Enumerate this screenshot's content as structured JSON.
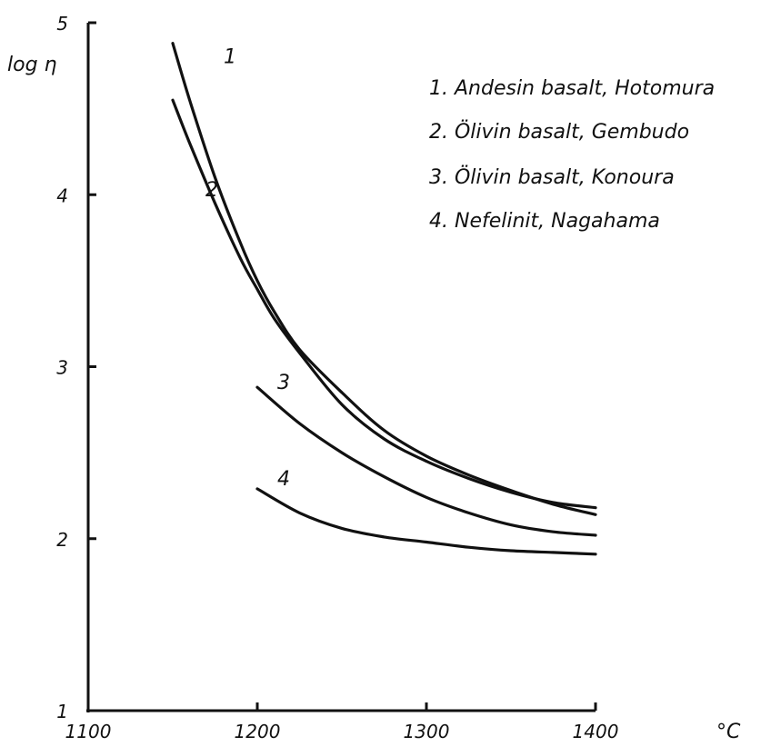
{
  "chart_data": {
    "type": "line",
    "title": "",
    "xlabel": "",
    "ylabel": "log η",
    "x_unit": "°C",
    "xlim": [
      1100,
      1400
    ],
    "ylim": [
      1,
      5
    ],
    "x_ticks": [
      "1100",
      "1200",
      "1300",
      "1400"
    ],
    "y_ticks": [
      "1",
      "2",
      "3",
      "4",
      "5"
    ],
    "grid": false,
    "legend_position": "top-right",
    "series": [
      {
        "id": "1",
        "label": "1",
        "name": "1. Andesin basalt, Hotomura",
        "x": [
          1150,
          1160,
          1175,
          1190,
          1200,
          1210,
          1225,
          1250,
          1275,
          1300,
          1325,
          1350,
          1375,
          1400
        ],
        "y": [
          4.88,
          4.55,
          4.1,
          3.72,
          3.5,
          3.32,
          3.1,
          2.85,
          2.63,
          2.48,
          2.37,
          2.28,
          2.2,
          2.14
        ]
      },
      {
        "id": "2",
        "label": "2",
        "name": "2. Ölivin basalt, Gembudo",
        "x": [
          1150,
          1160,
          1175,
          1190,
          1200,
          1210,
          1225,
          1250,
          1275,
          1300,
          1325,
          1350,
          1375,
          1400
        ],
        "y": [
          4.55,
          4.3,
          3.95,
          3.63,
          3.45,
          3.28,
          3.08,
          2.78,
          2.58,
          2.45,
          2.35,
          2.27,
          2.21,
          2.18
        ]
      },
      {
        "id": "3",
        "label": "3",
        "name": "3. Ölivin basalt, Konoura",
        "x": [
          1200,
          1225,
          1250,
          1275,
          1300,
          1325,
          1350,
          1375,
          1400
        ],
        "y": [
          2.88,
          2.67,
          2.5,
          2.36,
          2.24,
          2.15,
          2.08,
          2.04,
          2.02
        ]
      },
      {
        "id": "4",
        "label": "4",
        "name": "4. Nefelinit, Nagahama",
        "x": [
          1200,
          1225,
          1250,
          1275,
          1300,
          1325,
          1350,
          1375,
          1400
        ],
        "y": [
          2.29,
          2.15,
          2.06,
          2.01,
          1.98,
          1.95,
          1.93,
          1.92,
          1.91
        ]
      }
    ]
  }
}
